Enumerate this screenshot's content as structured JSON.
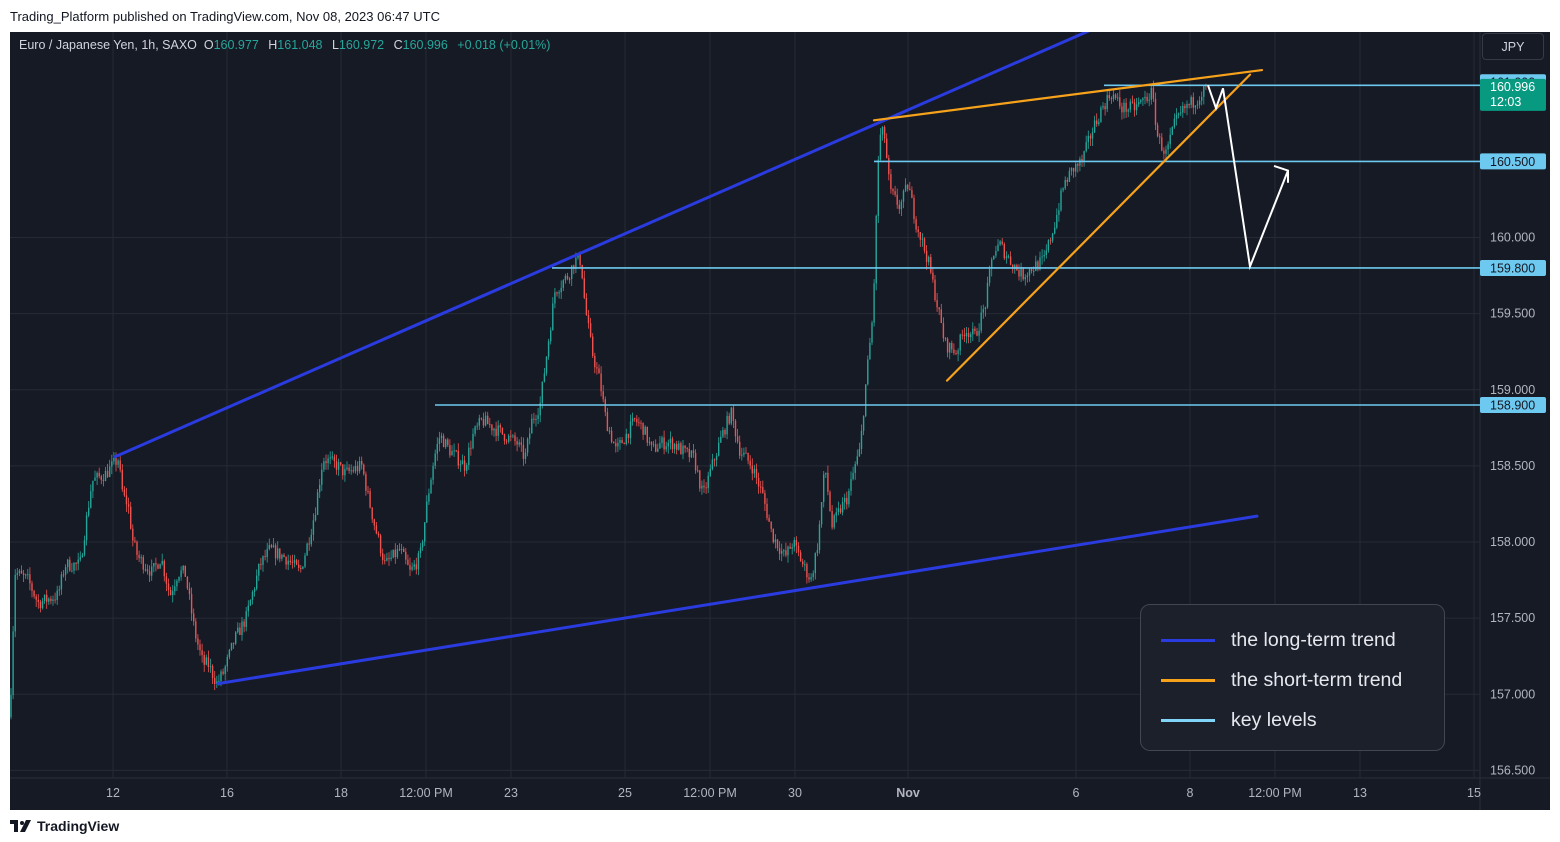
{
  "header": {
    "published": "Trading_Platform published on TradingView.com, Nov 08, 2023 06:47 UTC"
  },
  "footer": {
    "brand": "TradingView",
    "logo_icon": "tradingview-logo-icon"
  },
  "symbol_bar": {
    "name": "Euro / Japanese Yen, 1h, SAXO",
    "open_label": "O",
    "open": "160.977",
    "high_label": "H",
    "high": "161.048",
    "low_label": "L",
    "low": "160.972",
    "close_label": "C",
    "close": "160.996",
    "change": "+0.018 (+0.01%)",
    "value_color": "#26a69a"
  },
  "currency_button": "JPY",
  "legend": [
    {
      "label": "the long-term trend",
      "color": "#2a3be0"
    },
    {
      "label": "the short-term trend",
      "color": "#f7a21b"
    },
    {
      "label": "key levels",
      "color": "#7fd4f7"
    }
  ],
  "colors": {
    "background": "#161a25",
    "grid": "#262a35",
    "up": "#26a69a",
    "down": "#ef5350",
    "long_term_trend": "#2a3be0",
    "short_term_trend": "#f7a21b",
    "key_level": "#6ec9f0",
    "projection": "#ffffff",
    "price_tag": "#089981"
  },
  "chart_data": {
    "type": "candlestick",
    "symbol": "Euro / Japanese Yen",
    "interval": "1h",
    "ylim": [
      156.45,
      161.35
    ],
    "y_ticks": [
      "156.500",
      "157.000",
      "157.500",
      "158.000",
      "158.500",
      "159.000",
      "159.500",
      "160.000"
    ],
    "x_ticks": [
      "12",
      "16",
      "18",
      "12:00 PM",
      "23",
      "25",
      "12:00 PM",
      "30",
      "Nov",
      "6",
      "8",
      "12:00 PM",
      "13",
      "15"
    ],
    "key_levels": [
      {
        "label": "161.000",
        "value": 161.0
      },
      {
        "label": "160.500",
        "value": 160.5
      },
      {
        "label": "159.800",
        "value": 159.8
      },
      {
        "label": "158.900",
        "value": 158.9
      }
    ],
    "last_price": {
      "label": "160.996",
      "value": 160.996,
      "countdown": "12:03"
    },
    "price_path": [
      [
        0,
        156.85
      ],
      [
        5,
        157.8
      ],
      [
        18,
        157.75
      ],
      [
        28,
        157.6
      ],
      [
        48,
        157.65
      ],
      [
        55,
        157.85
      ],
      [
        70,
        157.85
      ],
      [
        82,
        158.4
      ],
      [
        96,
        158.45
      ],
      [
        105,
        158.52
      ],
      [
        108,
        158.55
      ],
      [
        113,
        158.3
      ],
      [
        118,
        158.25
      ],
      [
        123,
        158.0
      ],
      [
        128,
        157.9
      ],
      [
        142,
        157.8
      ],
      [
        151,
        157.9
      ],
      [
        160,
        157.65
      ],
      [
        168,
        157.8
      ],
      [
        175,
        157.8
      ],
      [
        185,
        157.4
      ],
      [
        193,
        157.2
      ],
      [
        198,
        157.2
      ],
      [
        207,
        157.07
      ],
      [
        214,
        157.15
      ],
      [
        224,
        157.35
      ],
      [
        236,
        157.5
      ],
      [
        250,
        157.85
      ],
      [
        260,
        157.95
      ],
      [
        275,
        157.9
      ],
      [
        283,
        157.85
      ],
      [
        290,
        157.8
      ],
      [
        300,
        158.05
      ],
      [
        305,
        158.2
      ],
      [
        313,
        158.55
      ],
      [
        328,
        158.5
      ],
      [
        335,
        158.45
      ],
      [
        352,
        158.5
      ],
      [
        358,
        158.3
      ],
      [
        365,
        158.1
      ],
      [
        375,
        157.85
      ],
      [
        390,
        157.95
      ],
      [
        400,
        157.8
      ],
      [
        410,
        157.9
      ],
      [
        418,
        158.3
      ],
      [
        424,
        158.55
      ],
      [
        430,
        158.7
      ],
      [
        440,
        158.6
      ],
      [
        455,
        158.5
      ],
      [
        463,
        158.7
      ],
      [
        472,
        158.8
      ],
      [
        484,
        158.75
      ],
      [
        495,
        158.7
      ],
      [
        507,
        158.65
      ],
      [
        515,
        158.55
      ],
      [
        522,
        158.8
      ],
      [
        530,
        158.9
      ],
      [
        538,
        159.3
      ],
      [
        545,
        159.65
      ],
      [
        558,
        159.75
      ],
      [
        565,
        159.85
      ],
      [
        571,
        159.85
      ],
      [
        575,
        159.55
      ],
      [
        582,
        159.25
      ],
      [
        590,
        159.05
      ],
      [
        596,
        158.8
      ],
      [
        606,
        158.6
      ],
      [
        616,
        158.7
      ],
      [
        625,
        158.8
      ],
      [
        633,
        158.75
      ],
      [
        642,
        158.6
      ],
      [
        651,
        158.65
      ],
      [
        663,
        158.65
      ],
      [
        672,
        158.6
      ],
      [
        684,
        158.55
      ],
      [
        693,
        158.3
      ],
      [
        702,
        158.5
      ],
      [
        712,
        158.7
      ],
      [
        721,
        158.85
      ],
      [
        730,
        158.6
      ],
      [
        742,
        158.5
      ],
      [
        753,
        158.3
      ],
      [
        762,
        158.05
      ],
      [
        775,
        157.9
      ],
      [
        783,
        158.0
      ],
      [
        793,
        157.85
      ],
      [
        801,
        157.75
      ],
      [
        808,
        158.0
      ],
      [
        815,
        158.5
      ],
      [
        822,
        158.1
      ],
      [
        829,
        158.2
      ],
      [
        838,
        158.3
      ],
      [
        845,
        158.5
      ],
      [
        850,
        158.6
      ],
      [
        856,
        159.05
      ],
      [
        863,
        159.5
      ],
      [
        869,
        160.65
      ],
      [
        874,
        160.7
      ],
      [
        880,
        160.3
      ],
      [
        890,
        160.2
      ],
      [
        898,
        160.35
      ],
      [
        906,
        160.1
      ],
      [
        918,
        159.85
      ],
      [
        926,
        159.6
      ],
      [
        935,
        159.3
      ],
      [
        946,
        159.25
      ],
      [
        955,
        159.4
      ],
      [
        965,
        159.35
      ],
      [
        975,
        159.55
      ],
      [
        983,
        159.9
      ],
      [
        990,
        159.95
      ],
      [
        1000,
        159.85
      ],
      [
        1012,
        159.75
      ],
      [
        1022,
        159.8
      ],
      [
        1034,
        159.85
      ],
      [
        1045,
        160.1
      ],
      [
        1054,
        160.35
      ],
      [
        1063,
        160.45
      ],
      [
        1072,
        160.5
      ],
      [
        1082,
        160.7
      ],
      [
        1092,
        160.85
      ],
      [
        1101,
        160.95
      ],
      [
        1112,
        160.85
      ],
      [
        1124,
        160.85
      ],
      [
        1133,
        160.9
      ],
      [
        1142,
        160.95
      ],
      [
        1148,
        160.65
      ],
      [
        1156,
        160.55
      ],
      [
        1165,
        160.75
      ],
      [
        1175,
        160.85
      ],
      [
        1185,
        160.9
      ],
      [
        1197,
        160.99
      ]
    ],
    "long_term_trend": [
      {
        "from": [
          105,
          158.56
        ],
        "to": [
          1118,
          161.47
        ]
      },
      {
        "from": [
          208,
          157.07
        ],
        "to": [
          1247,
          158.17
        ]
      }
    ],
    "short_term_trend": [
      {
        "from": [
          864,
          160.77
        ],
        "to": [
          1252,
          161.1
        ]
      },
      {
        "from": [
          937,
          159.06
        ],
        "to": [
          1240,
          161.07
        ]
      }
    ],
    "key_level_segments": [
      {
        "value": 161.0,
        "from": 1094,
        "to": 1470
      },
      {
        "value": 160.5,
        "from": 864,
        "to": 1470
      },
      {
        "value": 159.8,
        "from": 542,
        "to": 1470
      },
      {
        "value": 158.9,
        "from": 425,
        "to": 1470
      }
    ],
    "projection_path": [
      [
        1198,
        161.0
      ],
      [
        1206,
        160.85
      ],
      [
        1213,
        160.98
      ],
      [
        1240,
        159.81
      ],
      [
        1278,
        160.44
      ]
    ],
    "projection_arrow_head": [
      [
        1264,
        160.47
      ],
      [
        1278,
        160.44
      ],
      [
        1278,
        160.36
      ]
    ]
  }
}
